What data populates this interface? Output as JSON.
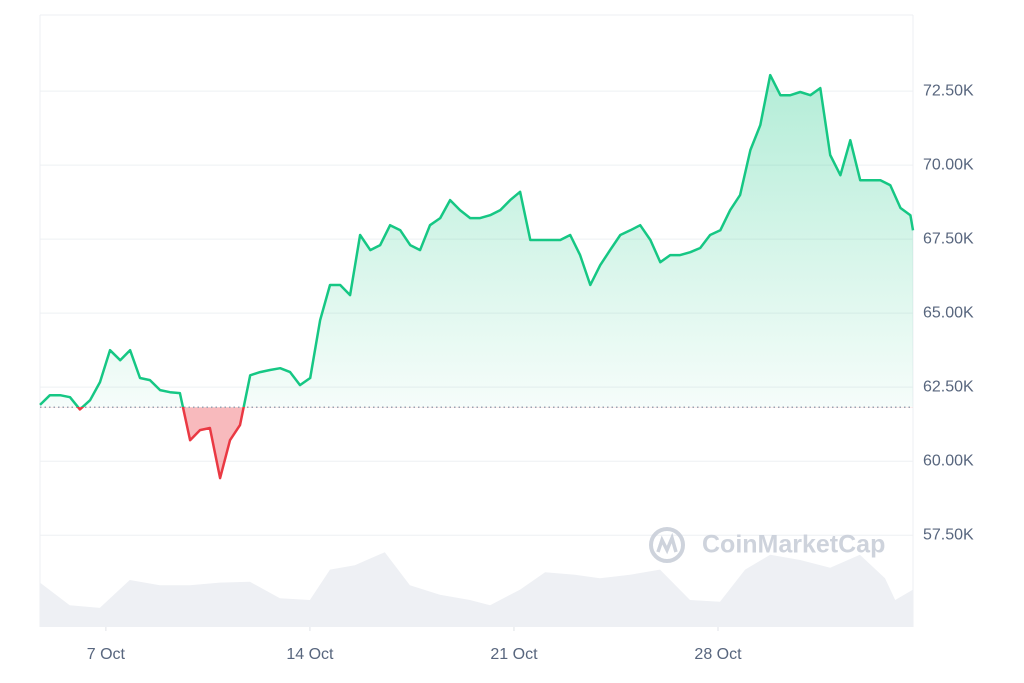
{
  "chart_data": {
    "type": "line",
    "watermark": "CoinMarketCap",
    "x": [
      4.74,
      5.08,
      5.43,
      5.77,
      6.11,
      6.46,
      6.8,
      7.14,
      7.49,
      7.83,
      8.17,
      8.51,
      8.86,
      9.2,
      9.54,
      9.89,
      10.23,
      10.57,
      10.92,
      11.26,
      11.6,
      11.95,
      12.29,
      12.63,
      12.98,
      13.32,
      13.66,
      14.01,
      14.35,
      14.69,
      15.04,
      15.38,
      15.72,
      16.07,
      16.41,
      16.75,
      17.1,
      17.44,
      17.78,
      18.12,
      18.47,
      18.81,
      19.15,
      19.5,
      19.84,
      20.18,
      20.53,
      20.87,
      21.21,
      21.56,
      21.9,
      22.24,
      22.59,
      22.93,
      23.27,
      23.62,
      23.96,
      24.3,
      24.65,
      24.99,
      25.33,
      25.68,
      26.02,
      26.36,
      26.7,
      27.05,
      27.39,
      27.73,
      28.08,
      28.42,
      28.76,
      29.11,
      29.45,
      29.79,
      30.14,
      30.48,
      30.82,
      31.17,
      31.51,
      31.85,
      32.2,
      32.54,
      32.88,
      33.23,
      33.57,
      33.91,
      34.26,
      34.6,
      34.69
    ],
    "series": [
      {
        "color": "#16c784",
        "below_color": "#ea3943",
        "values": [
          61900,
          62230,
          62230,
          62160,
          61750,
          62060,
          62670,
          63750,
          63410,
          63750,
          62810,
          62740,
          62400,
          62330,
          62300,
          60710,
          61050,
          61120,
          59430,
          60710,
          61220,
          62900,
          63010,
          63080,
          63140,
          63010,
          62570,
          62810,
          64760,
          65950,
          65950,
          65610,
          67640,
          67130,
          67300,
          67970,
          67800,
          67300,
          67130,
          67970,
          68210,
          68820,
          68480,
          68210,
          68210,
          68310,
          68480,
          68820,
          69100,
          67470,
          67470,
          67470,
          67470,
          67640,
          66960,
          65950,
          66620,
          67130,
          67640,
          67800,
          67970,
          67470,
          66720,
          66960,
          66960,
          67060,
          67200,
          67640,
          67800,
          68480,
          68990,
          70510,
          71350,
          73040,
          72360,
          72360,
          72470,
          72360,
          72600,
          70340,
          69660,
          70840,
          69490,
          69490,
          69490,
          69320,
          68550,
          68310,
          67800
        ]
      }
    ],
    "baseline": 61824,
    "volume": {
      "color": "#eef0f4",
      "x": [
        4.74,
        5.76,
        6.79,
        7.82,
        8.85,
        9.88,
        10.91,
        11.94,
        12.97,
        14.0,
        14.69,
        15.54,
        16.57,
        17.43,
        18.46,
        19.49,
        20.18,
        21.21,
        22.07,
        23.09,
        23.95,
        24.98,
        26.01,
        27.04,
        28.07,
        28.93,
        29.79,
        30.82,
        31.85,
        32.87,
        33.73,
        34.08,
        34.69
      ],
      "values": [
        51,
        25,
        22,
        54,
        48,
        48,
        51,
        52,
        33,
        31,
        66,
        71,
        86,
        48,
        37,
        31,
        25,
        43,
        63,
        60,
        56,
        60,
        66,
        31,
        29,
        66,
        83,
        77,
        68,
        83,
        56,
        31,
        43
      ],
      "ylim": [
        0,
        100
      ]
    },
    "xlim": [
      4.74,
      34.69
    ],
    "xticks": [
      {
        "value": 7,
        "label": "7 Oct"
      },
      {
        "value": 14,
        "label": "14 Oct"
      },
      {
        "value": 21,
        "label": "21 Oct"
      },
      {
        "value": 28,
        "label": "28 Oct"
      }
    ],
    "ylim": [
      54400,
      75070
    ],
    "yticks": [
      {
        "value": 57500,
        "label": "57.50K"
      },
      {
        "value": 60000,
        "label": "60.00K"
      },
      {
        "value": 62500,
        "label": "62.50K"
      },
      {
        "value": 65000,
        "label": "65.00K"
      },
      {
        "value": 67500,
        "label": "67.50K"
      },
      {
        "value": 70000,
        "label": "70.00K"
      },
      {
        "value": 72500,
        "label": "72.50K"
      }
    ],
    "grid": true
  }
}
